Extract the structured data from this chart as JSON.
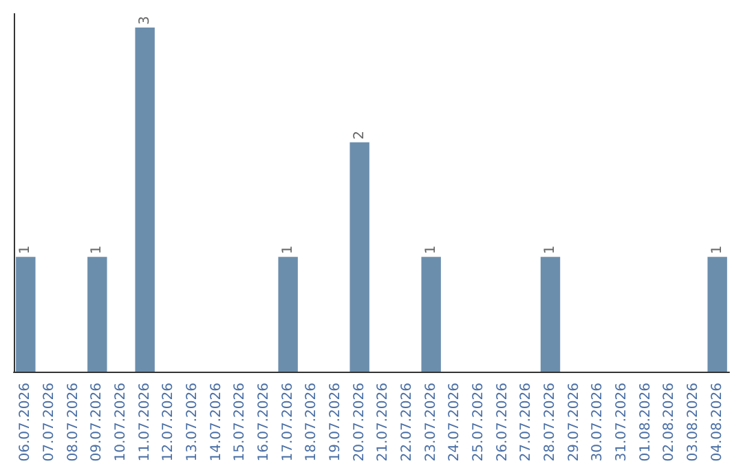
{
  "chart_data": {
    "type": "bar",
    "categories": [
      "06.07.2026",
      "07.07.2026",
      "08.07.2026",
      "09.07.2026",
      "10.07.2026",
      "11.07.2026",
      "12.07.2026",
      "13.07.2026",
      "14.07.2026",
      "15.07.2026",
      "16.07.2026",
      "17.07.2026",
      "18.07.2026",
      "19.07.2026",
      "20.07.2026",
      "21.07.2026",
      "22.07.2026",
      "23.07.2026",
      "24.07.2026",
      "25.07.2026",
      "26.07.2026",
      "27.07.2026",
      "28.07.2026",
      "29.07.2026",
      "30.07.2026",
      "31.07.2026",
      "01.08.2026",
      "02.08.2026",
      "03.08.2026",
      "04.08.2026"
    ],
    "values": [
      1,
      0,
      0,
      1,
      0,
      3,
      0,
      0,
      0,
      0,
      0,
      1,
      0,
      0,
      2,
      0,
      0,
      1,
      0,
      0,
      0,
      0,
      1,
      0,
      0,
      0,
      0,
      0,
      0,
      1
    ],
    "color": "#6c8ead",
    "value_labels": [
      "1",
      null,
      null,
      "1",
      null,
      "3",
      null,
      null,
      null,
      null,
      null,
      "1",
      null,
      null,
      "2",
      null,
      null,
      "1",
      null,
      null,
      null,
      null,
      "1",
      null,
      null,
      null,
      null,
      null,
      null,
      "1"
    ],
    "grid": false,
    "tick_labels": "x"
  }
}
